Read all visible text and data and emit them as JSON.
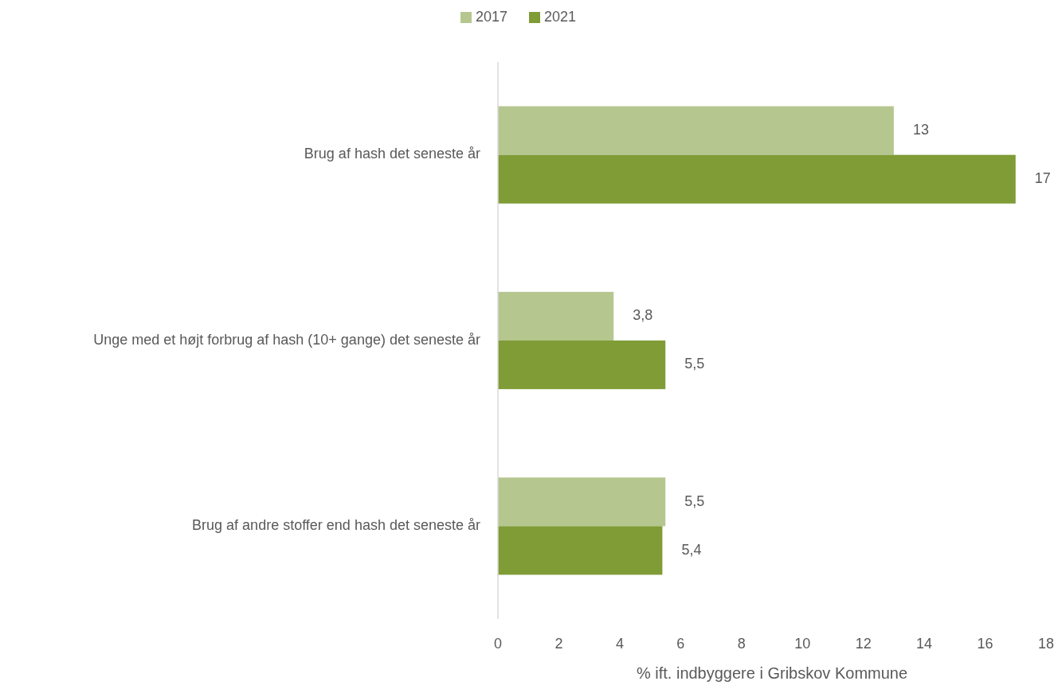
{
  "chart_data": {
    "type": "bar",
    "orientation": "horizontal",
    "xlabel": "% ift. indbyggere i Gribskov Kommune",
    "categories": [
      "Brug af hash det seneste år",
      "Unge med et højt forbrug af hash (10+ gange) det seneste år",
      "Brug af andre stoffer end hash det seneste år"
    ],
    "series": [
      {
        "name": "2017",
        "color": "#b5c78f",
        "values": [
          13,
          3.8,
          5.5
        ],
        "value_labels": [
          "13",
          "3,8",
          "5,5"
        ]
      },
      {
        "name": "2021",
        "color": "#7f9c36",
        "values": [
          17,
          5.5,
          5.4
        ],
        "value_labels": [
          "17",
          "5,5",
          "5,4"
        ]
      }
    ],
    "xlim": [
      0,
      18
    ],
    "xticks": [
      0,
      2,
      4,
      6,
      8,
      10,
      12,
      14,
      16,
      18
    ],
    "grid": false,
    "legend": "top"
  }
}
